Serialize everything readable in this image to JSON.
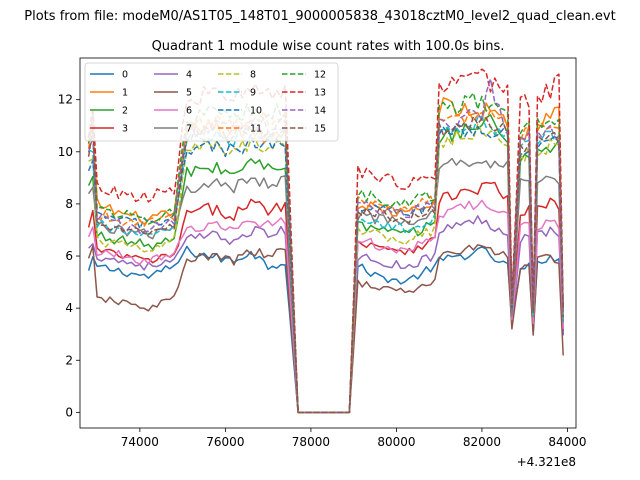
{
  "chart_data": {
    "type": "line",
    "suptitle": "Plots from file: modeM0/AS1T05_148T01_9000005838_43018cztM0_level2_quad_clean.evt",
    "title": "Quadrant 1 module wise count rates with 100.0s bins.",
    "xlabel": "",
    "ylabel": "",
    "x_offset_label": "+4.321e8",
    "xlim": [
      72600,
      84200
    ],
    "ylim": [
      -0.6,
      13.6
    ],
    "x_ticks": [
      74000,
      76000,
      78000,
      80000,
      82000,
      84000
    ],
    "x_tick_labels": [
      "74000",
      "76000",
      "78000",
      "80000",
      "82000",
      "84000"
    ],
    "y_ticks": [
      0,
      2,
      4,
      6,
      8,
      10,
      12
    ],
    "y_tick_labels": [
      "0",
      "2",
      "4",
      "6",
      "8",
      "10",
      "12"
    ],
    "legend_location": "upper-left",
    "legend_columns": 4,
    "gap_range": [
      77700,
      78900
    ],
    "x_start": 72800,
    "x_end": 83900,
    "bin_size": 100,
    "key_x": [
      72800,
      72900,
      73000,
      73600,
      74200,
      74800,
      75100,
      75600,
      76200,
      76600,
      77000,
      77400,
      77700,
      78900,
      79100,
      79600,
      80200,
      80900,
      81000,
      81500,
      82000,
      82200,
      82600,
      82700,
      82900,
      83100,
      83200,
      83300,
      83600,
      83800,
      83900
    ],
    "series": [
      {
        "name": "0",
        "color": "#1f77b4",
        "dash": "solid",
        "values": [
          5.4,
          5.8,
          5.6,
          5.4,
          5.2,
          5.6,
          6.2,
          6.0,
          5.8,
          6.2,
          5.6,
          5.8,
          0.0,
          0.0,
          5.6,
          5.2,
          5.0,
          5.6,
          5.8,
          6.0,
          6.2,
          6.0,
          5.6,
          3.6,
          5.4,
          5.6,
          3.0,
          5.8,
          6.0,
          5.8,
          3.0
        ]
      },
      {
        "name": "1",
        "color": "#ff7f0e",
        "dash": "solid",
        "values": [
          10.2,
          10.8,
          8.0,
          7.6,
          7.4,
          7.6,
          10.6,
          11.0,
          10.6,
          10.8,
          10.6,
          10.8,
          0.0,
          0.0,
          8.0,
          7.8,
          7.6,
          8.0,
          11.8,
          11.6,
          11.4,
          11.8,
          11.2,
          4.2,
          10.4,
          11.0,
          4.5,
          11.0,
          11.4,
          11.6,
          3.8
        ]
      },
      {
        "name": "2",
        "color": "#2ca02c",
        "dash": "solid",
        "values": [
          8.6,
          9.0,
          6.8,
          6.6,
          6.4,
          6.6,
          9.2,
          9.4,
          9.2,
          9.6,
          9.4,
          9.6,
          0.0,
          0.0,
          7.2,
          7.0,
          6.8,
          7.2,
          10.6,
          10.8,
          11.0,
          11.2,
          10.4,
          3.8,
          9.6,
          10.0,
          4.0,
          10.0,
          10.2,
          10.4,
          3.6
        ]
      },
      {
        "name": "3",
        "color": "#d62728",
        "dash": "solid",
        "values": [
          7.0,
          7.8,
          6.2,
          6.0,
          5.8,
          6.0,
          7.6,
          7.8,
          7.6,
          8.0,
          7.8,
          8.0,
          0.0,
          0.0,
          6.6,
          6.4,
          6.2,
          6.6,
          8.2,
          8.4,
          8.6,
          8.8,
          8.2,
          3.6,
          7.6,
          7.8,
          3.4,
          7.8,
          8.0,
          7.8,
          3.2
        ]
      },
      {
        "name": "4",
        "color": "#9467bd",
        "dash": "solid",
        "values": [
          6.2,
          6.6,
          6.0,
          5.8,
          5.6,
          5.8,
          6.6,
          6.8,
          6.6,
          7.0,
          6.8,
          7.0,
          0.0,
          0.0,
          6.0,
          5.8,
          5.6,
          6.0,
          7.0,
          7.2,
          7.4,
          7.2,
          7.0,
          3.4,
          6.6,
          6.8,
          3.2,
          6.8,
          7.0,
          6.8,
          3.0
        ]
      },
      {
        "name": "5",
        "color": "#8c564b",
        "dash": "solid",
        "values": [
          5.8,
          6.2,
          4.4,
          4.2,
          4.0,
          4.4,
          5.8,
          6.0,
          5.8,
          6.2,
          6.0,
          6.2,
          0.0,
          0.0,
          5.0,
          4.8,
          4.6,
          5.0,
          6.0,
          6.2,
          6.4,
          6.2,
          6.0,
          3.2,
          5.6,
          5.8,
          3.0,
          5.8,
          6.0,
          5.8,
          2.2
        ]
      },
      {
        "name": "6",
        "color": "#e377c2",
        "dash": "solid",
        "values": [
          6.6,
          7.0,
          6.2,
          6.0,
          5.8,
          6.0,
          7.0,
          7.2,
          7.0,
          7.4,
          7.2,
          7.4,
          0.0,
          0.0,
          6.6,
          6.4,
          6.2,
          6.6,
          7.6,
          7.8,
          8.0,
          7.8,
          7.6,
          3.6,
          7.0,
          7.2,
          3.4,
          7.2,
          7.4,
          7.2,
          3.2
        ]
      },
      {
        "name": "7",
        "color": "#7f7f7f",
        "dash": "solid",
        "values": [
          8.2,
          8.6,
          7.2,
          7.0,
          6.8,
          7.0,
          8.6,
          8.8,
          8.6,
          9.0,
          8.8,
          9.0,
          0.0,
          0.0,
          7.6,
          7.4,
          7.2,
          7.6,
          9.4,
          9.6,
          9.8,
          9.6,
          9.4,
          3.8,
          8.8,
          9.0,
          3.6,
          9.0,
          9.2,
          9.0,
          3.4
        ]
      },
      {
        "name": "8",
        "color": "#bcbd22",
        "dash": "dashed",
        "values": [
          9.4,
          9.8,
          6.6,
          6.4,
          6.2,
          6.6,
          10.0,
          10.2,
          10.0,
          10.4,
          10.2,
          10.4,
          0.0,
          0.0,
          7.0,
          6.8,
          6.6,
          7.0,
          10.4,
          10.6,
          10.8,
          10.6,
          10.4,
          4.0,
          9.8,
          10.0,
          3.8,
          10.0,
          10.2,
          10.0,
          3.6
        ]
      },
      {
        "name": "9",
        "color": "#17becf",
        "dash": "dashed",
        "values": [
          9.8,
          10.2,
          7.2,
          7.0,
          6.8,
          7.0,
          10.4,
          10.6,
          10.4,
          10.8,
          10.6,
          10.8,
          0.0,
          0.0,
          7.4,
          7.2,
          7.0,
          7.4,
          10.8,
          11.0,
          11.2,
          11.0,
          10.8,
          4.0,
          10.2,
          10.4,
          3.8,
          10.4,
          10.6,
          10.4,
          3.6
        ]
      },
      {
        "name": "10",
        "color": "#1f77b4",
        "dash": "dashed",
        "values": [
          9.0,
          9.4,
          7.6,
          7.4,
          7.2,
          7.4,
          10.0,
          10.2,
          10.0,
          10.4,
          10.2,
          10.4,
          0.0,
          0.0,
          8.0,
          7.8,
          7.6,
          8.0,
          10.6,
          10.8,
          11.0,
          10.8,
          10.6,
          4.0,
          10.0,
          10.2,
          3.8,
          10.2,
          10.4,
          10.2,
          3.6
        ]
      },
      {
        "name": "11",
        "color": "#ff7f0e",
        "dash": "dashed",
        "values": [
          10.4,
          11.0,
          7.6,
          7.4,
          7.2,
          7.6,
          11.0,
          11.2,
          11.0,
          11.4,
          11.2,
          11.4,
          0.0,
          0.0,
          8.2,
          8.0,
          7.8,
          8.2,
          11.2,
          11.4,
          11.6,
          11.4,
          11.2,
          4.2,
          10.6,
          10.8,
          4.0,
          10.8,
          11.0,
          10.8,
          3.8
        ]
      },
      {
        "name": "12",
        "color": "#2ca02c",
        "dash": "dashed",
        "values": [
          10.6,
          11.4,
          7.8,
          7.6,
          7.4,
          7.8,
          11.2,
          11.4,
          11.2,
          11.6,
          11.4,
          11.6,
          0.0,
          0.0,
          8.4,
          8.2,
          8.0,
          8.4,
          11.6,
          11.8,
          12.0,
          11.8,
          11.6,
          4.2,
          11.0,
          11.2,
          4.0,
          11.2,
          11.4,
          11.2,
          3.8
        ]
      },
      {
        "name": "13",
        "color": "#d62728",
        "dash": "dashed",
        "values": [
          10.8,
          11.8,
          8.6,
          8.4,
          8.2,
          8.6,
          12.0,
          12.2,
          12.0,
          12.4,
          12.2,
          12.4,
          0.0,
          0.0,
          9.2,
          9.0,
          8.8,
          9.2,
          12.4,
          12.6,
          12.8,
          12.6,
          12.4,
          4.4,
          11.8,
          12.0,
          4.2,
          12.0,
          12.4,
          13.0,
          4.0
        ]
      },
      {
        "name": "14",
        "color": "#9467bd",
        "dash": "dashed",
        "values": [
          10.2,
          10.8,
          7.4,
          7.2,
          7.0,
          7.4,
          10.8,
          11.0,
          10.8,
          11.2,
          11.0,
          11.2,
          0.0,
          0.0,
          8.0,
          7.8,
          7.6,
          8.0,
          11.0,
          11.2,
          11.4,
          12.6,
          11.0,
          4.2,
          10.4,
          10.6,
          4.0,
          10.6,
          10.8,
          10.6,
          3.8
        ]
      },
      {
        "name": "15",
        "color": "#8c564b",
        "dash": "dashed",
        "values": [
          10.0,
          10.6,
          7.2,
          7.0,
          6.8,
          7.2,
          10.6,
          10.8,
          10.6,
          11.0,
          10.8,
          11.0,
          0.0,
          0.0,
          7.8,
          7.6,
          7.4,
          7.8,
          10.8,
          11.0,
          11.2,
          11.0,
          10.8,
          4.2,
          10.2,
          10.4,
          4.0,
          10.4,
          10.6,
          10.4,
          3.8
        ]
      }
    ]
  }
}
